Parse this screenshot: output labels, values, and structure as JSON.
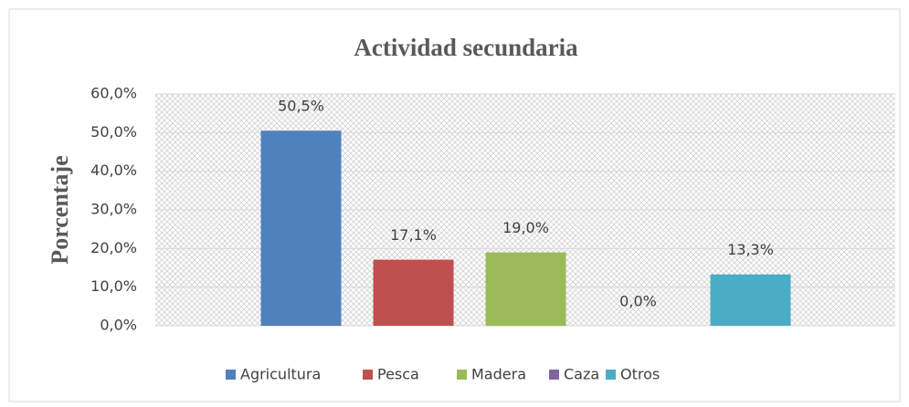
{
  "chart_data": {
    "type": "bar",
    "title": "Actividad secundaria",
    "y_label": "Porcentaje",
    "categories": [
      "Agricultura",
      "Pesca",
      "Madera",
      "Caza",
      "Otros"
    ],
    "values": [
      50.5,
      17.1,
      19.0,
      0.0,
      13.3
    ],
    "value_labels": [
      "50,5%",
      "17,1%",
      "19,0%",
      "0,0%",
      "13,3%"
    ],
    "colors": [
      "#4f81bd",
      "#c0504d",
      "#9bbb59",
      "#8064a2",
      "#4bacc6"
    ],
    "ylim": [
      0,
      60
    ],
    "yticks": [
      {
        "value": 0,
        "label": "0,0%"
      },
      {
        "value": 10,
        "label": "10,0%"
      },
      {
        "value": 20,
        "label": "20,0%"
      },
      {
        "value": 30,
        "label": "30,0%"
      },
      {
        "value": 40,
        "label": "40,0%"
      },
      {
        "value": 50,
        "label": "50,0%"
      },
      {
        "value": 60,
        "label": "60,0%"
      }
    ],
    "grid": true,
    "legend": "bottom"
  }
}
